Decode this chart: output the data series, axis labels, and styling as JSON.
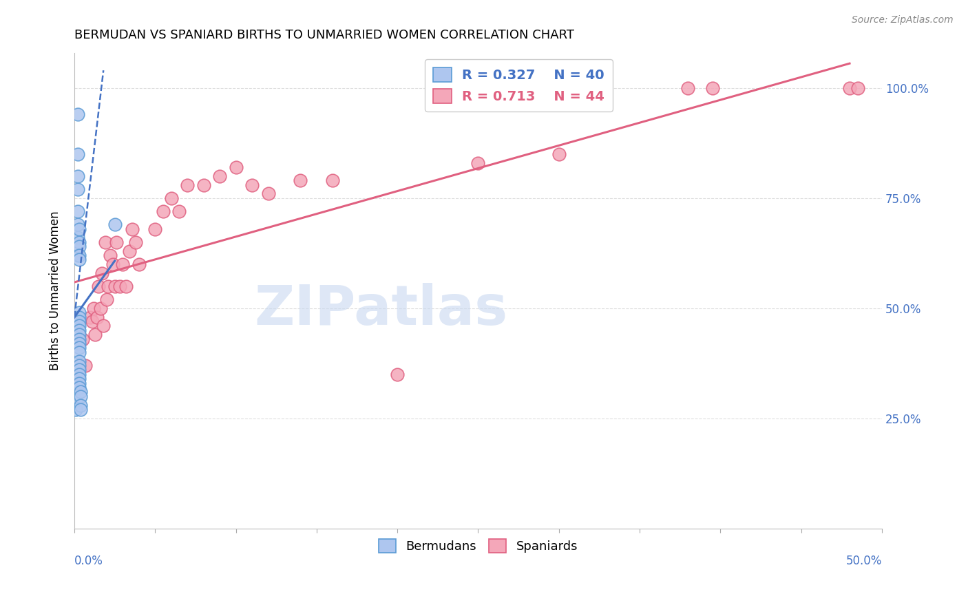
{
  "title": "BERMUDAN VS SPANIARD BIRTHS TO UNMARRIED WOMEN CORRELATION CHART",
  "source": "Source: ZipAtlas.com",
  "ylabel": "Births to Unmarried Women",
  "ytick_labels": [
    "100.0%",
    "75.0%",
    "50.0%",
    "25.0%"
  ],
  "ytick_values": [
    1.0,
    0.75,
    0.5,
    0.25
  ],
  "xlim": [
    0.0,
    0.5
  ],
  "ylim": [
    0.0,
    1.08
  ],
  "bermudan_R": 0.327,
  "bermudan_N": 40,
  "spaniard_R": 0.713,
  "spaniard_N": 44,
  "bermudan_color": "#aec6ef",
  "spaniard_color": "#f4a7b9",
  "bermudan_edge": "#5b9bd5",
  "spaniard_edge": "#e06080",
  "trend_blue": "#4472c4",
  "trend_pink": "#e06080",
  "watermark": "ZIPatlas",
  "watermark_color": "#c8d8f0",
  "bermudans_x": [
    0.001,
    0.001,
    0.001,
    0.002,
    0.002,
    0.002,
    0.002,
    0.002,
    0.002,
    0.002,
    0.002,
    0.002,
    0.002,
    0.003,
    0.003,
    0.003,
    0.003,
    0.003,
    0.003,
    0.003,
    0.003,
    0.003,
    0.003,
    0.003,
    0.003,
    0.003,
    0.003,
    0.003,
    0.003,
    0.003,
    0.003,
    0.003,
    0.003,
    0.003,
    0.003,
    0.004,
    0.004,
    0.004,
    0.004,
    0.025
  ],
  "bermudans_y": [
    0.33,
    0.29,
    0.27,
    0.94,
    0.85,
    0.8,
    0.77,
    0.72,
    0.69,
    0.66,
    0.62,
    0.48,
    0.47,
    0.68,
    0.65,
    0.64,
    0.62,
    0.61,
    0.49,
    0.48,
    0.47,
    0.46,
    0.45,
    0.44,
    0.43,
    0.42,
    0.41,
    0.4,
    0.38,
    0.37,
    0.36,
    0.35,
    0.34,
    0.33,
    0.32,
    0.31,
    0.3,
    0.28,
    0.27,
    0.69
  ],
  "spaniards_x": [
    0.005,
    0.007,
    0.01,
    0.011,
    0.012,
    0.013,
    0.014,
    0.015,
    0.016,
    0.017,
    0.018,
    0.019,
    0.02,
    0.021,
    0.022,
    0.024,
    0.025,
    0.026,
    0.028,
    0.03,
    0.032,
    0.034,
    0.036,
    0.038,
    0.04,
    0.05,
    0.055,
    0.06,
    0.065,
    0.07,
    0.08,
    0.09,
    0.1,
    0.11,
    0.12,
    0.14,
    0.16,
    0.2,
    0.25,
    0.3,
    0.38,
    0.395,
    0.48,
    0.485
  ],
  "spaniards_y": [
    0.43,
    0.37,
    0.48,
    0.47,
    0.5,
    0.44,
    0.48,
    0.55,
    0.5,
    0.58,
    0.46,
    0.65,
    0.52,
    0.55,
    0.62,
    0.6,
    0.55,
    0.65,
    0.55,
    0.6,
    0.55,
    0.63,
    0.68,
    0.65,
    0.6,
    0.68,
    0.72,
    0.75,
    0.72,
    0.78,
    0.78,
    0.8,
    0.82,
    0.78,
    0.76,
    0.79,
    0.79,
    0.35,
    0.83,
    0.85,
    1.0,
    1.0,
    1.0,
    1.0
  ]
}
